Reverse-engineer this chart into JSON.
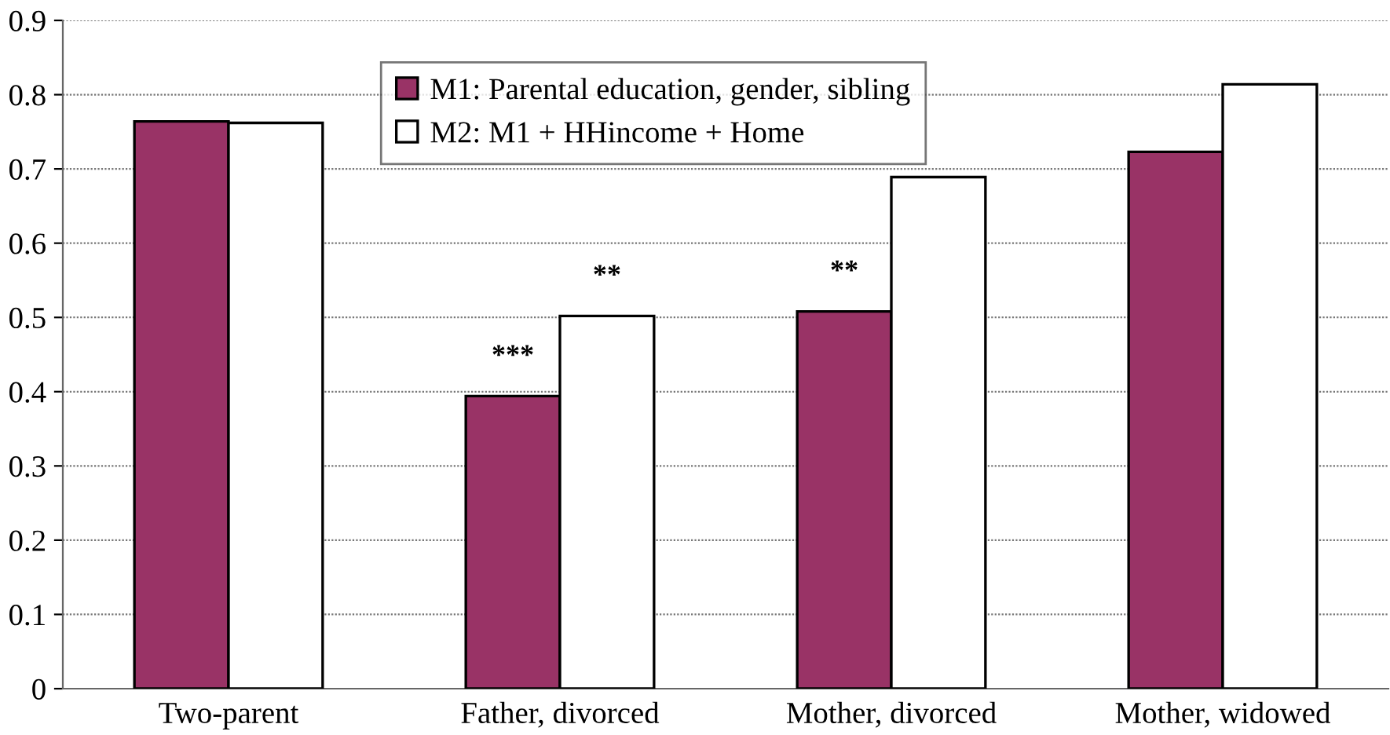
{
  "chart_data": {
    "type": "bar",
    "categories": [
      "Two-parent",
      "Father, divorced",
      "Mother, divorced",
      "Mother, widowed"
    ],
    "series": [
      {
        "name": "M1: Parental education, gender, sibling",
        "color": "#993366",
        "values": [
          0.764,
          0.394,
          0.508,
          0.723
        ]
      },
      {
        "name": "M2: M1 + HHincome + Home",
        "color": "#ffffff",
        "values": [
          0.762,
          0.502,
          0.689,
          0.814
        ]
      }
    ],
    "ylim": [
      0,
      0.9
    ],
    "yticks": [
      {
        "value": 0,
        "label": "0"
      },
      0.1,
      0.2,
      0.3,
      0.4,
      0.5,
      0.6,
      0.7,
      0.8,
      0.9
    ],
    "grid": "y",
    "legend": "top",
    "annotations": [
      {
        "text": "***",
        "x": "Father, divorced",
        "y": 0.394
      },
      {
        "text": "**",
        "x": "Father, divorced",
        "y": 0.502
      },
      {
        "text": "**",
        "x": "Mother, divorced",
        "y": 0.508
      }
    ]
  }
}
